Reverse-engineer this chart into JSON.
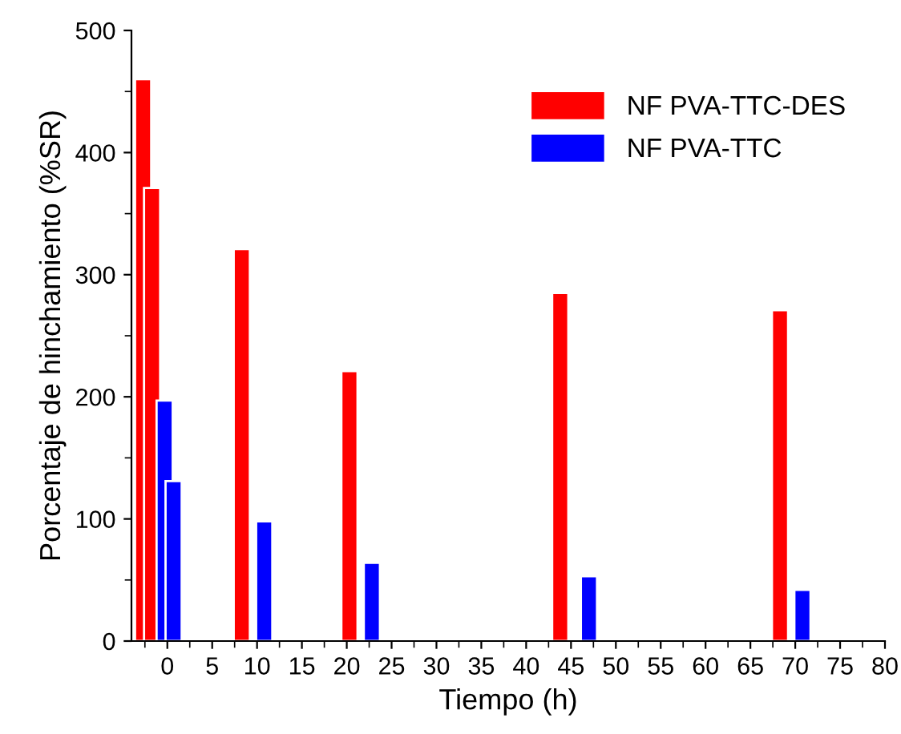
{
  "chart_data": {
    "type": "bar",
    "xlabel": "Tiempo (h)",
    "ylabel": "Porcentaje de hinchamiento (%SR)",
    "series": [
      {
        "name": "NF PVA-TTC-DES",
        "color": "#ff0000",
        "x": [
          -2.7,
          -1.7,
          8.3,
          20.3,
          43.8,
          68.3
        ],
        "values": [
          460,
          371,
          321,
          221,
          285,
          271
        ]
      },
      {
        "name": "NF PVA-TTC",
        "color": "#0000ff",
        "x": [
          -0.3,
          0.7,
          10.8,
          22.8,
          47.0,
          70.8
        ],
        "values": [
          197,
          131,
          98,
          64,
          53,
          42
        ]
      }
    ],
    "xlim": [
      -4,
      80
    ],
    "xticks": [
      0,
      5,
      10,
      15,
      20,
      25,
      30,
      35,
      40,
      45,
      50,
      55,
      60,
      65,
      70,
      75,
      80
    ],
    "ylim": [
      0,
      500
    ],
    "yticks": [
      0,
      100,
      200,
      300,
      400,
      500
    ],
    "grid": false,
    "legend": "top right"
  }
}
